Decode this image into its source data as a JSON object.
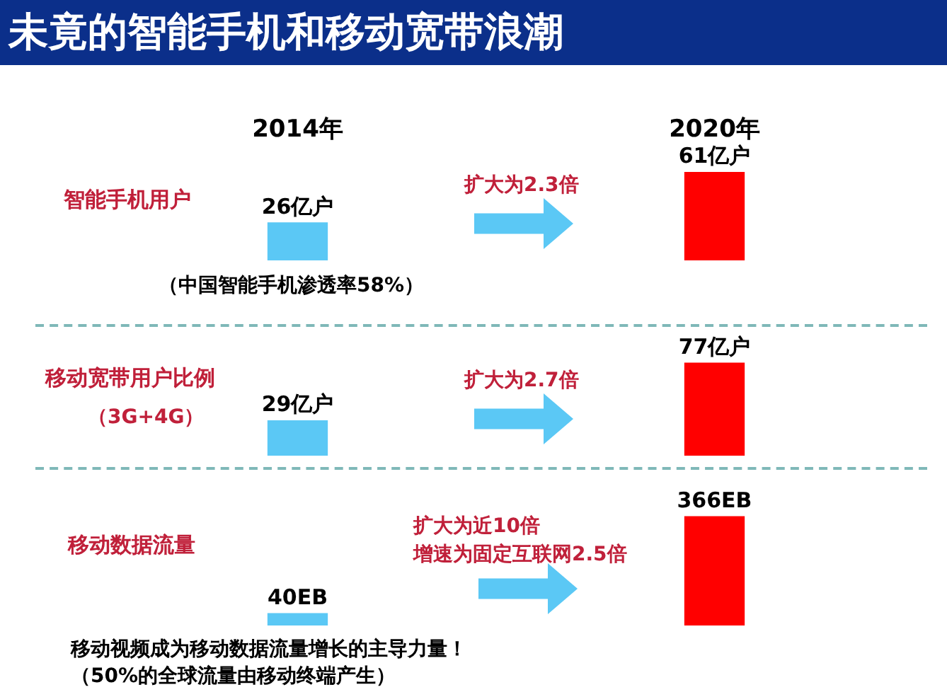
{
  "chart_data": [
    {
      "type": "bar",
      "title": "未竟的智能手机和移动宽带浪潮",
      "ylabel": "智能手机用户",
      "categories": [
        "2014年",
        "2020年"
      ],
      "values": [
        26,
        61
      ],
      "colors": [
        "#5bc8f5",
        "#ff0000"
      ],
      "value_labels": [
        "26亿户",
        "61亿户"
      ],
      "annotations": [
        "扩大为2.3倍",
        "（中国智能手机渗透率58%）"
      ],
      "tick_labels": "x"
    },
    {
      "type": "bar",
      "ylabel": "移动宽带用户比例",
      "categories": [
        null,
        null
      ],
      "values": [
        29,
        77
      ],
      "colors": [
        "#5bc8f5",
        "#ff0000"
      ],
      "value_labels": [
        "29亿户",
        "77亿户"
      ],
      "annotations": [
        "（3G+4G）",
        "扩大为2.7倍"
      ],
      "tick_labels": false
    },
    {
      "type": "bar",
      "ylabel": "移动数据流量",
      "categories": [
        null,
        null
      ],
      "values": [
        40,
        366
      ],
      "colors": [
        "#5bc8f5",
        "#ff0000"
      ],
      "value_labels": [
        "40EB",
        "366EB"
      ],
      "annotations": [
        "扩大为近10倍",
        "增速为固定互联网2.5倍",
        "移动视频成为移动数据流量增长的主导力量！",
        "（50%的全球流量由移动终端产生）"
      ],
      "tick_labels": false
    }
  ]
}
